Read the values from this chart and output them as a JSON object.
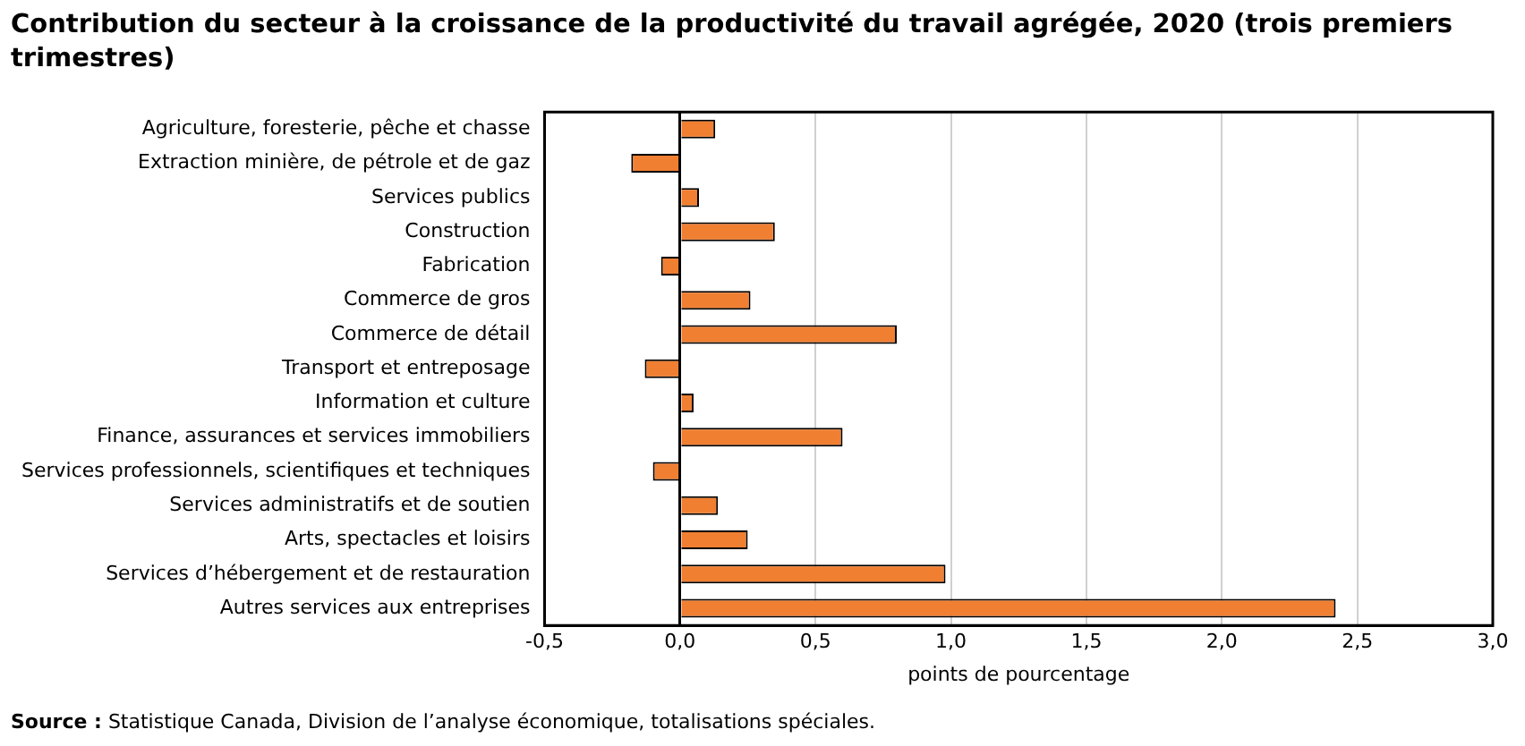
{
  "chart_data": {
    "type": "bar",
    "orientation": "horizontal",
    "title": "Contribution du secteur à la croissance de la productivité du travail agrégée, 2020 (trois premiers trimestres)",
    "categories": [
      "Agriculture, foresterie, pêche et chasse",
      "Extraction minière, de pétrole et de gaz",
      "Services publics",
      "Construction",
      "Fabrication",
      "Commerce de gros",
      "Commerce de détail",
      "Transport et entreposage",
      "Information et culture",
      "Finance, assurances et services immobiliers",
      "Services professionnels, scientifiques et techniques",
      "Services administratifs et de soutien",
      "Arts, spectacles et loisirs",
      "Services d’hébergement et de restauration",
      "Autres services aux entreprises"
    ],
    "values": [
      0.13,
      -0.18,
      0.07,
      0.35,
      -0.07,
      0.26,
      0.8,
      -0.13,
      0.05,
      0.6,
      -0.1,
      0.14,
      0.25,
      0.98,
      2.42
    ],
    "color": "#f07f32",
    "xlim": [
      -0.5,
      3.0
    ],
    "xticks": [
      {
        "value": -0.5,
        "label": "-0,5"
      },
      {
        "value": 0,
        "label": "0,0"
      },
      {
        "value": 0.5,
        "label": "0,5"
      },
      {
        "value": 1,
        "label": "1,0"
      },
      {
        "value": 1.5,
        "label": "1,5"
      },
      {
        "value": 2,
        "label": "2,0"
      },
      {
        "value": 2.5,
        "label": "2,5"
      },
      {
        "value": 3,
        "label": "3,0"
      }
    ],
    "xlabel": "points de pourcentage",
    "grid": "x",
    "annotations": [
      "Source : Statistique Canada, Division de l’analyse économique, totalisations spéciales."
    ]
  }
}
